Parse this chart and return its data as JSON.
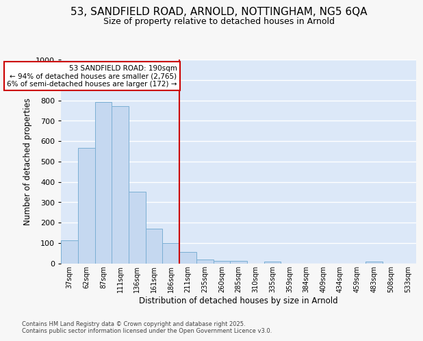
{
  "title_line1": "53, SANDFIELD ROAD, ARNOLD, NOTTINGHAM, NG5 6QA",
  "title_line2": "Size of property relative to detached houses in Arnold",
  "xlabel": "Distribution of detached houses by size in Arnold",
  "ylabel": "Number of detached properties",
  "bar_labels": [
    "37sqm",
    "62sqm",
    "87sqm",
    "111sqm",
    "136sqm",
    "161sqm",
    "186sqm",
    "211sqm",
    "235sqm",
    "260sqm",
    "285sqm",
    "310sqm",
    "335sqm",
    "359sqm",
    "384sqm",
    "409sqm",
    "434sqm",
    "459sqm",
    "483sqm",
    "508sqm",
    "533sqm"
  ],
  "bar_values": [
    113,
    565,
    790,
    770,
    350,
    170,
    100,
    55,
    18,
    13,
    12,
    0,
    10,
    0,
    0,
    0,
    0,
    0,
    7,
    0,
    0
  ],
  "bar_color": "#c5d8f0",
  "bar_edge_color": "#7bafd4",
  "vline_index": 6,
  "vline_color": "#cc0000",
  "annotation_text": "53 SANDFIELD ROAD: 190sqm\n← 94% of detached houses are smaller (2,765)\n6% of semi-detached houses are larger (172) →",
  "annotation_box_facecolor": "#ffffff",
  "annotation_box_edgecolor": "#cc0000",
  "ylim": [
    0,
    1000
  ],
  "yticks": [
    0,
    100,
    200,
    300,
    400,
    500,
    600,
    700,
    800,
    900,
    1000
  ],
  "plot_bgcolor": "#dce8f8",
  "fig_bgcolor": "#f7f7f7",
  "grid_color": "#ffffff",
  "title_fontsize": 11,
  "subtitle_fontsize": 9,
  "footer_line1": "Contains HM Land Registry data © Crown copyright and database right 2025.",
  "footer_line2": "Contains public sector information licensed under the Open Government Licence v3.0."
}
